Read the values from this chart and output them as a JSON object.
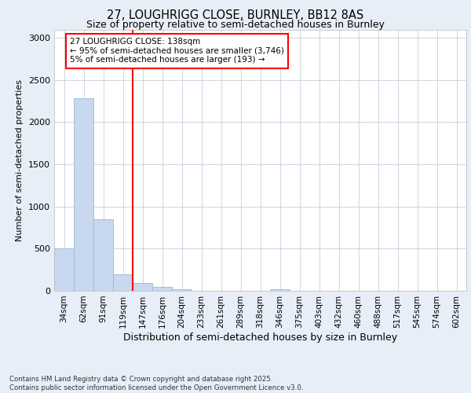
{
  "title_line1": "27, LOUGHRIGG CLOSE, BURNLEY, BB12 8AS",
  "title_line2": "Size of property relative to semi-detached houses in Burnley",
  "xlabel": "Distribution of semi-detached houses by size in Burnley",
  "ylabel": "Number of semi-detached properties",
  "categories": [
    "34sqm",
    "62sqm",
    "91sqm",
    "119sqm",
    "147sqm",
    "176sqm",
    "204sqm",
    "233sqm",
    "261sqm",
    "289sqm",
    "318sqm",
    "346sqm",
    "375sqm",
    "403sqm",
    "432sqm",
    "460sqm",
    "488sqm",
    "517sqm",
    "545sqm",
    "574sqm",
    "602sqm"
  ],
  "values": [
    500,
    2280,
    850,
    200,
    90,
    45,
    20,
    0,
    0,
    0,
    0,
    20,
    0,
    0,
    0,
    0,
    0,
    0,
    0,
    0,
    0
  ],
  "bar_color": "#c8d8ee",
  "bar_edge_color": "#9ab8d8",
  "vline_color": "red",
  "vline_x": 3.5,
  "annotation_text_line1": "27 LOUGHRIGG CLOSE: 138sqm",
  "annotation_text_line2": "← 95% of semi-detached houses are smaller (3,746)",
  "annotation_text_line3": "5% of semi-detached houses are larger (193) →",
  "ylim": [
    0,
    3100
  ],
  "yticks": [
    0,
    500,
    1000,
    1500,
    2000,
    2500,
    3000
  ],
  "footer_text": "Contains HM Land Registry data © Crown copyright and database right 2025.\nContains public sector information licensed under the Open Government Licence v3.0.",
  "bg_color": "#e8eef8",
  "plot_bg_color": "#ffffff",
  "grid_color": "#c8d0dc"
}
